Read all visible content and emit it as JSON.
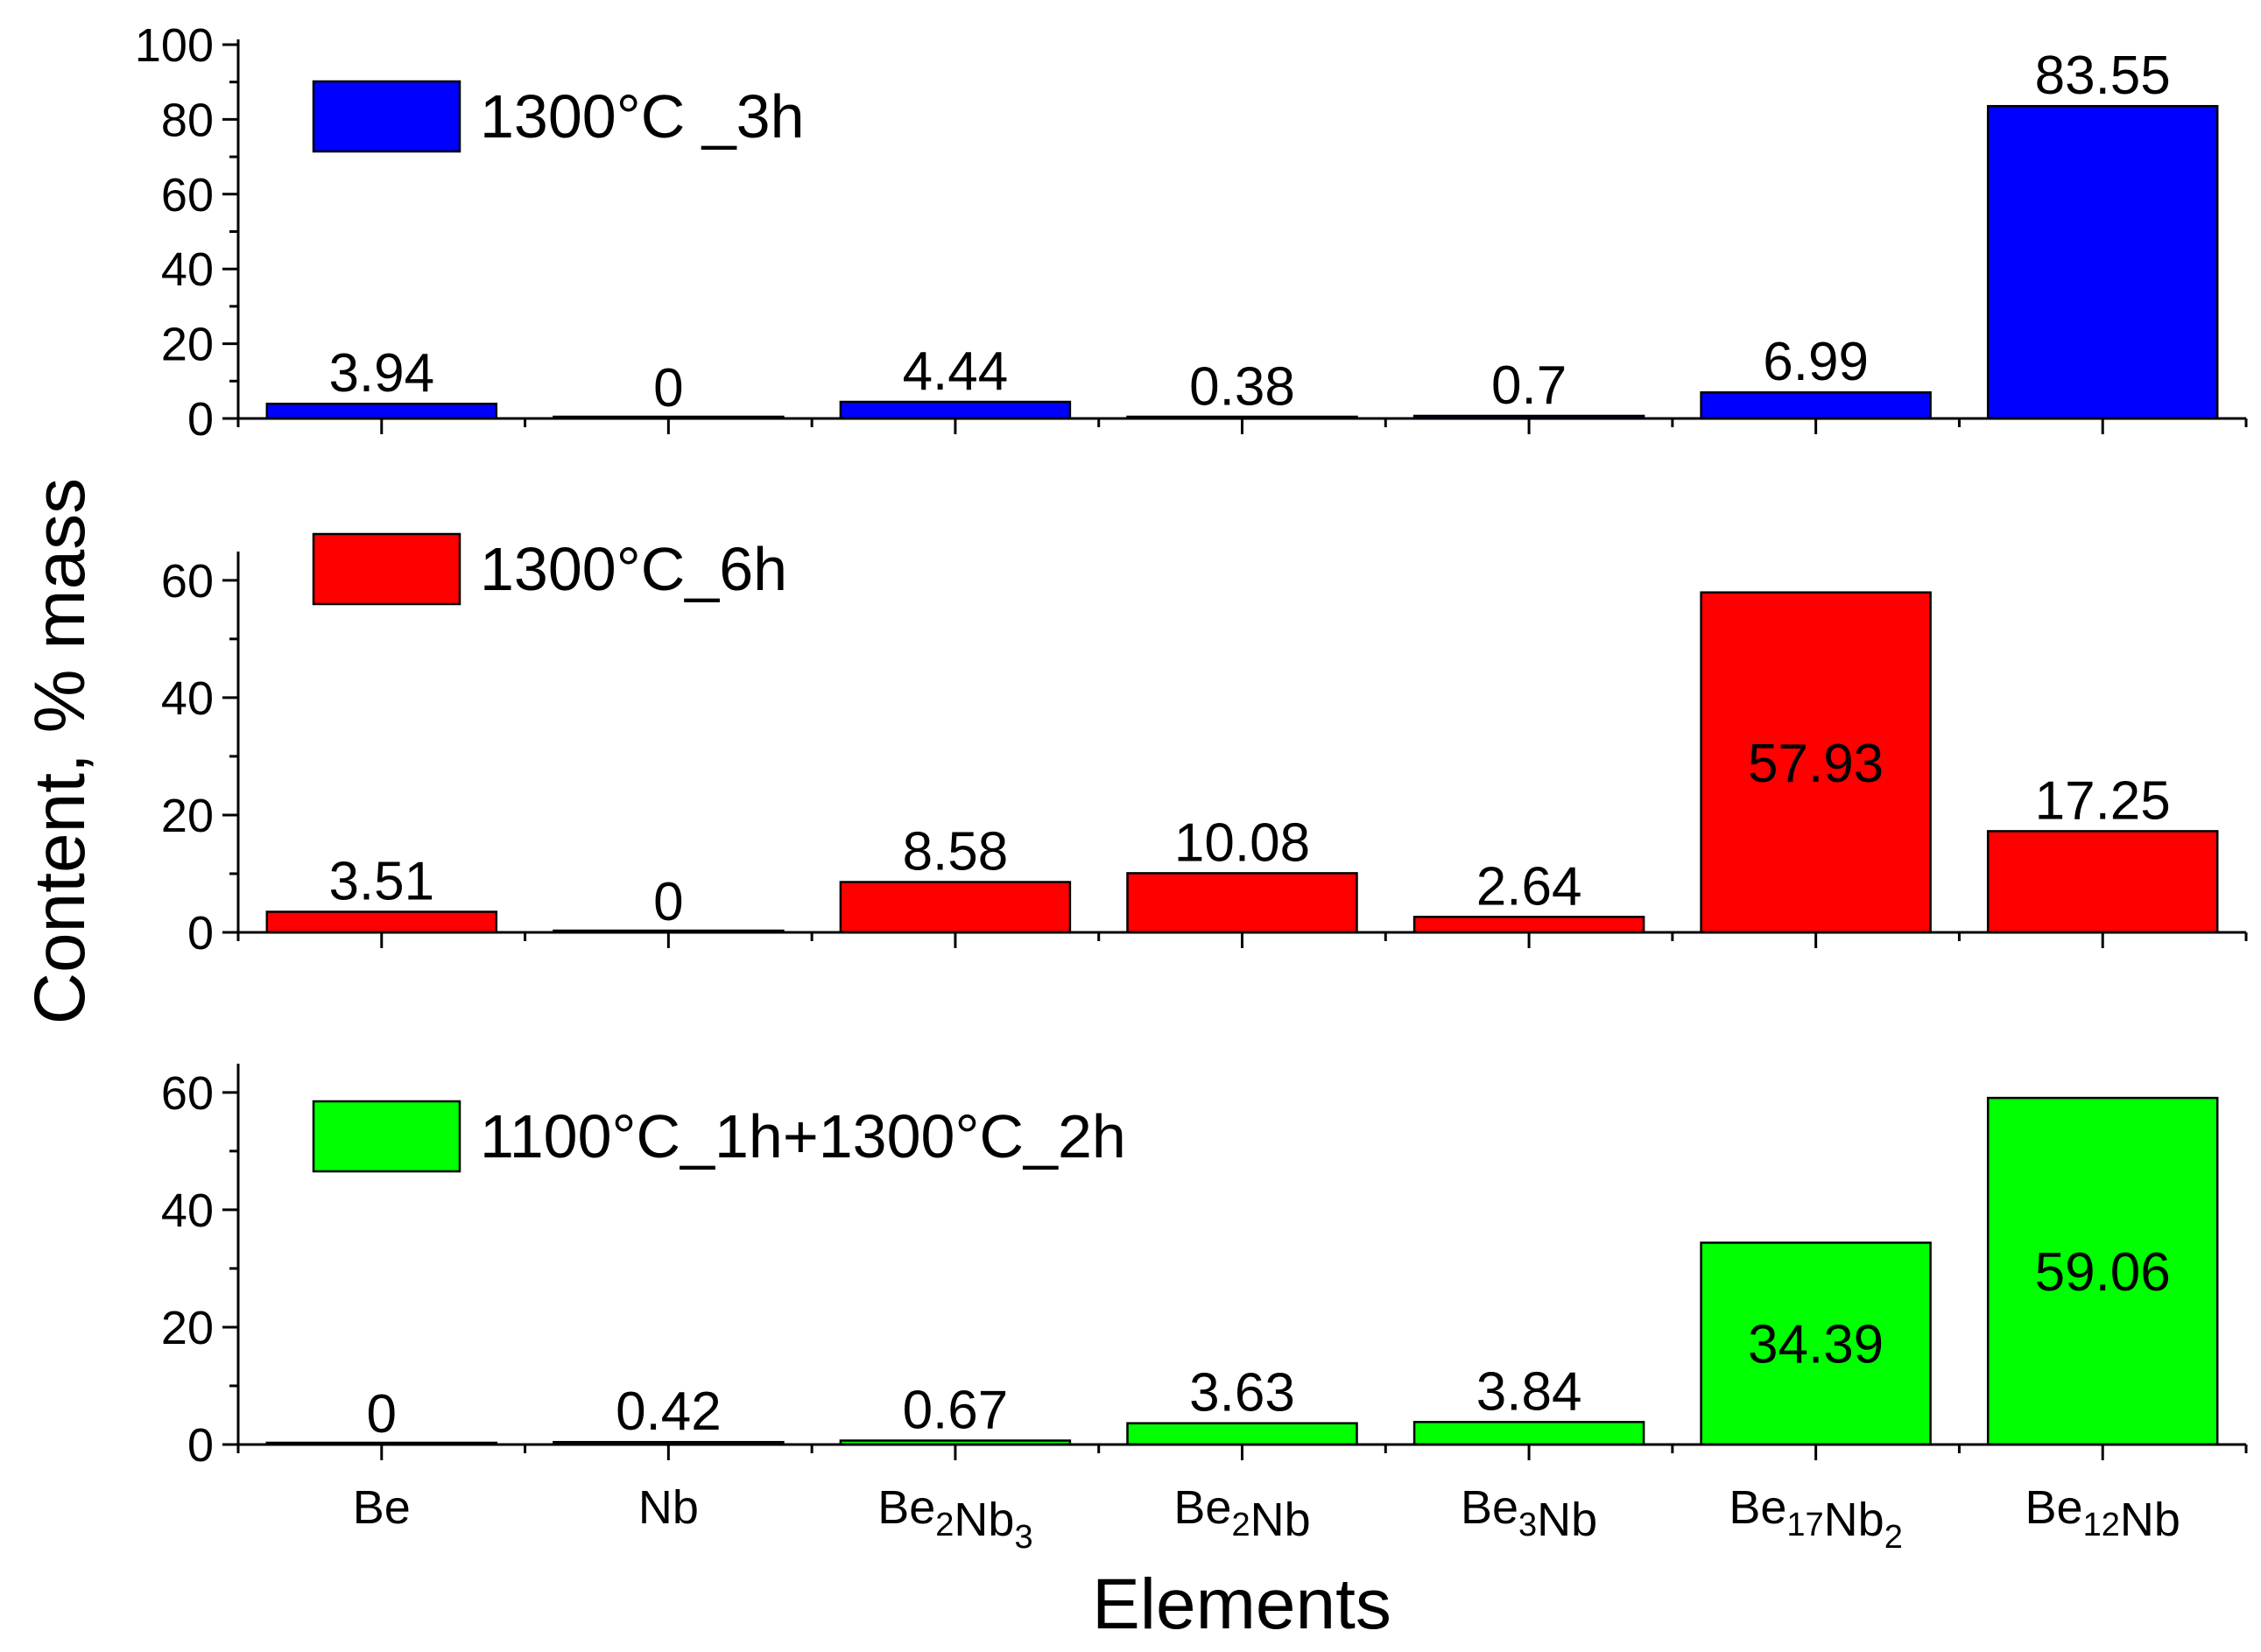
{
  "chart_data": {
    "type": "bar",
    "xlabel": "Elements",
    "ylabel": "Content, % mass",
    "categories": [
      {
        "base": "Be",
        "parts": [
          [
            "Be",
            ""
          ]
        ]
      },
      {
        "base": "Nb",
        "parts": [
          [
            "Nb",
            ""
          ]
        ]
      },
      {
        "base": "Be2Nb3",
        "parts": [
          [
            "Be",
            "2"
          ],
          [
            "Nb",
            "3"
          ]
        ]
      },
      {
        "base": "Be2Nb",
        "parts": [
          [
            "Be",
            "2"
          ],
          [
            "Nb",
            ""
          ]
        ]
      },
      {
        "base": "Be3Nb",
        "parts": [
          [
            "Be",
            "3"
          ],
          [
            "Nb",
            ""
          ]
        ]
      },
      {
        "base": "Be17Nb2",
        "parts": [
          [
            "Be",
            "17"
          ],
          [
            "Nb",
            "2"
          ]
        ]
      },
      {
        "base": "Be12Nb",
        "parts": [
          [
            "Be",
            "12"
          ],
          [
            "Nb",
            ""
          ]
        ]
      }
    ],
    "panels": [
      {
        "name": "1300°C _3h",
        "color": "#0000FF",
        "ylim": [
          0,
          100
        ],
        "yticks": [
          0,
          20,
          40,
          60,
          80,
          100
        ],
        "minor_step": 10,
        "values": [
          3.94,
          0,
          4.44,
          0.38,
          0.7,
          6.99,
          83.55
        ],
        "labels": [
          "3.94",
          "0",
          "4.44",
          "0.38",
          "0.7",
          "6.99",
          "83.55"
        ]
      },
      {
        "name": "1300°C_6h",
        "color": "#FF0000",
        "ylim": [
          0,
          64
        ],
        "yticks": [
          0,
          20,
          40,
          60
        ],
        "minor_step": 10,
        "values": [
          3.51,
          0,
          8.58,
          10.08,
          2.64,
          57.93,
          17.25
        ],
        "labels": [
          "3.51",
          "0",
          "8.58",
          "10.08",
          "2.64",
          "57.93",
          "17.25"
        ]
      },
      {
        "name": "1100°C_1h+1300°C_2h",
        "color": "#00FF00",
        "ylim": [
          0,
          64
        ],
        "yticks": [
          0,
          20,
          40,
          60
        ],
        "minor_step": 10,
        "values": [
          0,
          0.42,
          0.67,
          3.63,
          3.84,
          34.39,
          59.06
        ],
        "labels": [
          "0",
          "0.42",
          "0.67",
          "3.63",
          "3.84",
          "34.39",
          "59.06"
        ]
      }
    ]
  }
}
